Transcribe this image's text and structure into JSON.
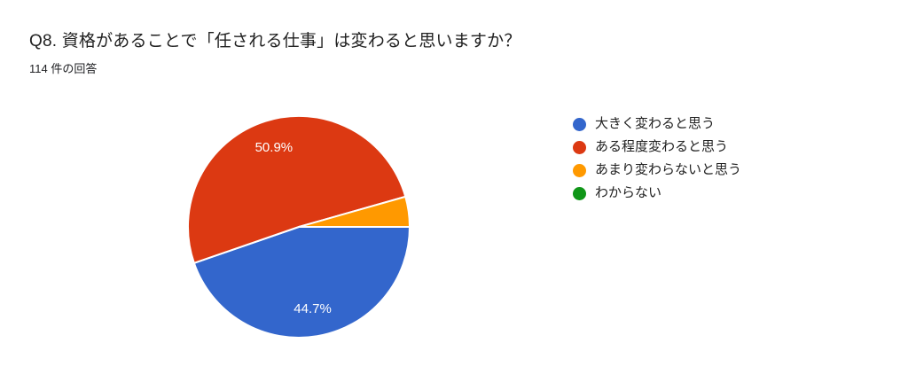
{
  "header": {
    "title": "Q8. 資格があることで「任される仕事」は変わると思いますか？",
    "subtitle": "114 件の回答"
  },
  "chart_data": {
    "type": "pie",
    "title": "Q8. 資格があることで「任される仕事」は変わると思いますか？",
    "subtitle": "114 件の回答",
    "total_responses_text": "114 件の回答",
    "start_angle_deg": 0,
    "direction": "clockwise",
    "legend_position": "right",
    "slices": [
      {
        "id": "changes-greatly",
        "legend": "大きく変わると思う",
        "value": 44.7,
        "label": "44.7%",
        "color": "#3366cc"
      },
      {
        "id": "changes-somewhat",
        "legend": "ある程度変わると思う",
        "value": 50.9,
        "label": "50.9%",
        "color": "#dc3912"
      },
      {
        "id": "changes-little",
        "legend": "あまり変わらないと思う",
        "value": 4.4,
        "label": "",
        "color": "#ff9900"
      },
      {
        "id": "dont-know",
        "legend": "わからない",
        "value": 0,
        "label": "",
        "color": "#109618"
      }
    ]
  }
}
